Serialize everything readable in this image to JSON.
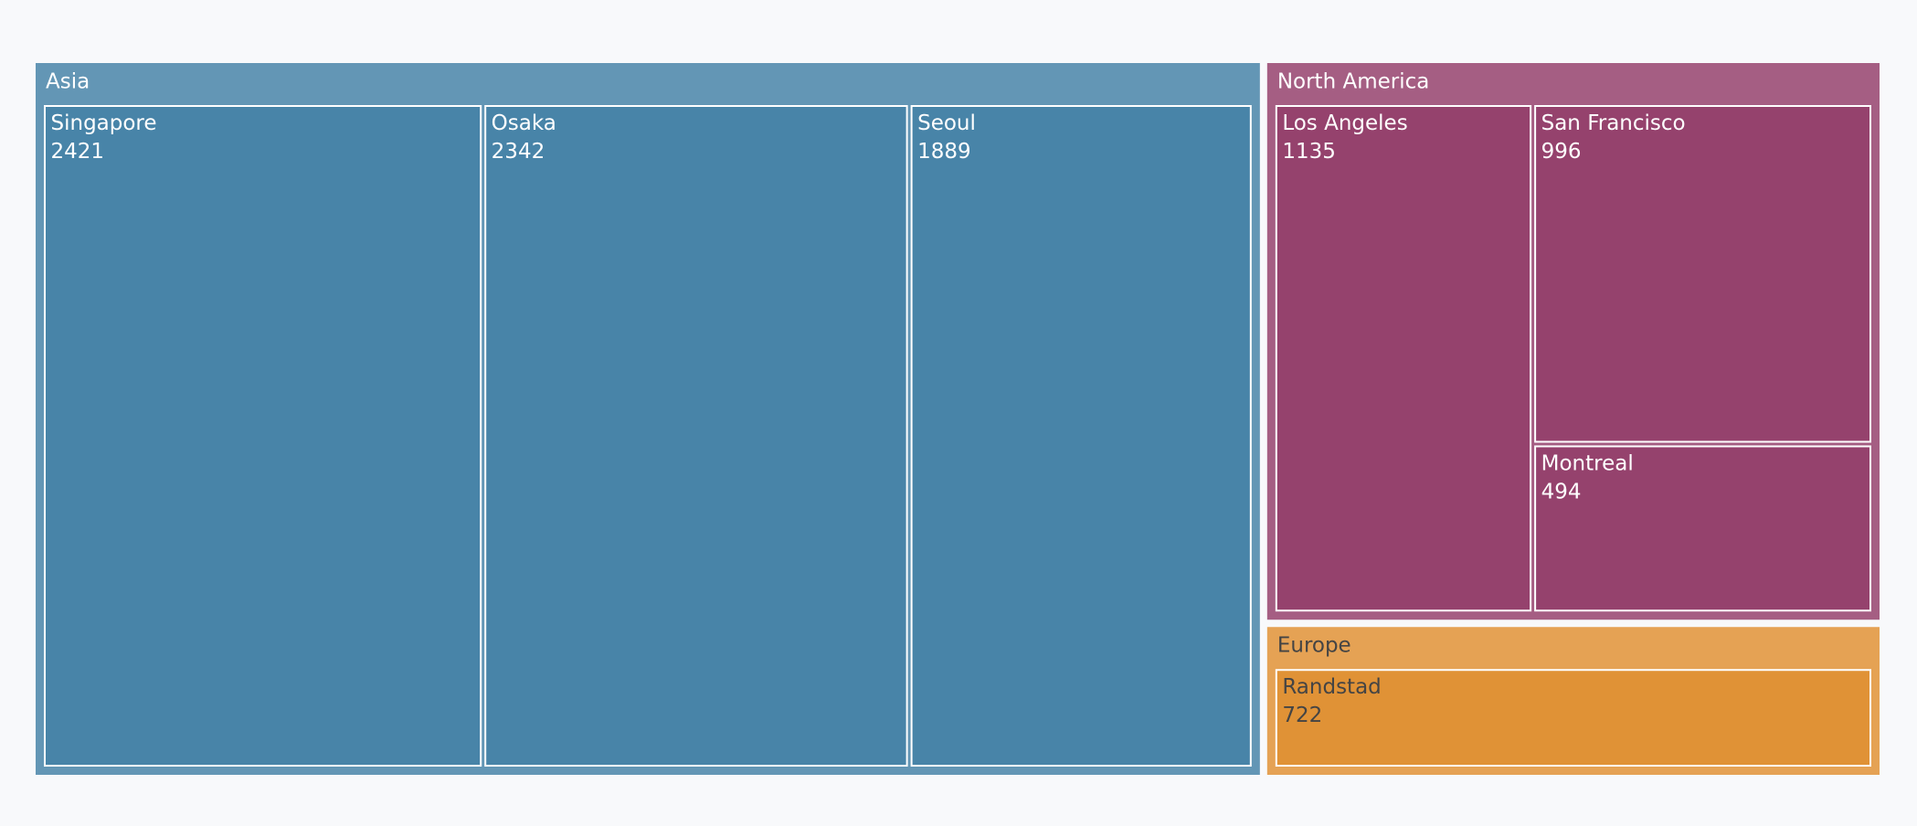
{
  "chart_data": {
    "type": "treemap",
    "groups": [
      {
        "name": "Asia",
        "color": "#4884a8",
        "children": [
          {
            "name": "Singapore",
            "value": 2421
          },
          {
            "name": "Osaka",
            "value": 2342
          },
          {
            "name": "Seoul",
            "value": 1889
          }
        ]
      },
      {
        "name": "North America",
        "color": "#95426d",
        "children": [
          {
            "name": "Los Angeles",
            "value": 1135
          },
          {
            "name": "San Francisco",
            "value": 996
          },
          {
            "name": "Montreal",
            "value": 494
          }
        ]
      },
      {
        "name": "Europe",
        "color": "#e09236",
        "children": [
          {
            "name": "Randstad",
            "value": 722
          }
        ]
      }
    ]
  }
}
